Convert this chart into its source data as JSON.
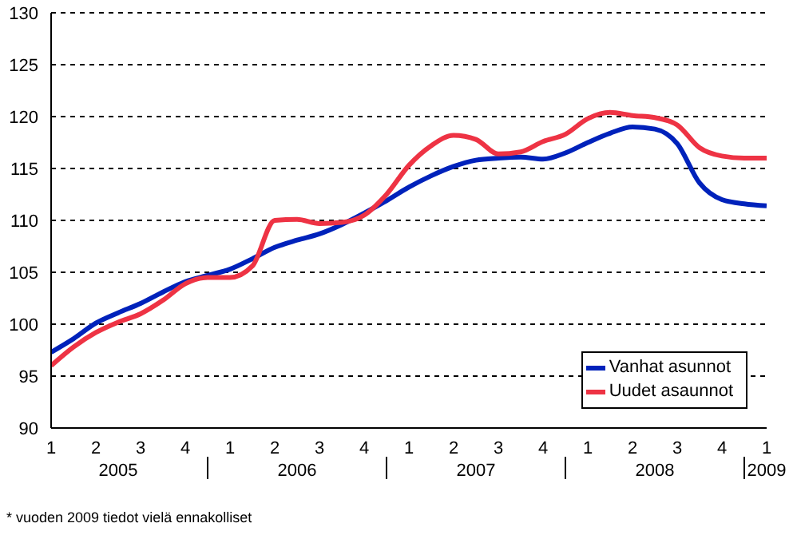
{
  "chart_data": {
    "type": "line",
    "categories": [
      "1",
      null,
      "2",
      null,
      "3",
      null,
      "4",
      null,
      "1",
      null,
      "2",
      null,
      "3",
      null,
      "4",
      null,
      "1",
      null,
      "2",
      null,
      "3",
      null,
      "4",
      null,
      "1",
      null,
      "2",
      null,
      "3",
      null,
      "4",
      null,
      "1"
    ],
    "series": [
      {
        "name": "Vanhat asunnot",
        "color": "#0022bb",
        "values": [
          97.3,
          98.6,
          100.1,
          101.1,
          102,
          103.1,
          104.1,
          104.7,
          105.3,
          106.3,
          107.4,
          108.1,
          108.7,
          109.6,
          110.7,
          111.9,
          113.2,
          114.3,
          115.2,
          115.8,
          116,
          116.1,
          115.9,
          116.5,
          117.5,
          118.4,
          119,
          118.8,
          117.4,
          113.6,
          112,
          111.6,
          111.4
        ]
      },
      {
        "name": "Uudet asaunnot",
        "color": "#ee3344",
        "values": [
          96,
          97.8,
          99.2,
          100.2,
          101,
          102.3,
          103.9,
          104.5,
          104.5,
          105.6,
          110,
          110.1,
          109.7,
          109.8,
          110.5,
          112.5,
          115.3,
          117.2,
          118.2,
          117.8,
          116.4,
          116.6,
          117.6,
          118.3,
          119.8,
          120.4,
          120.1,
          119.9,
          119.2,
          117,
          116.2,
          116,
          116
        ]
      }
    ],
    "ylim": [
      90,
      130
    ],
    "yticks": [
      90,
      95,
      100,
      105,
      110,
      115,
      120,
      125,
      130
    ],
    "grid": "y",
    "legend": "bottom right",
    "marker": "none",
    "line_style": "solid",
    "annotations": [
      "2005",
      "2006",
      "2007",
      "2008",
      "2009",
      "* vuoden 2009 tiedot vielä ennakolliset"
    ]
  }
}
